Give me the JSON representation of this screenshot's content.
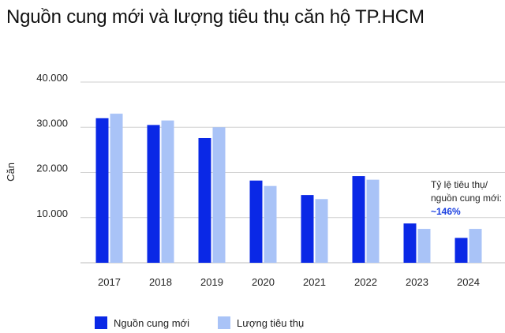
{
  "chart_data": {
    "type": "bar",
    "title": "Nguồn cung mới và lượng tiêu thụ căn hộ TP.HCM",
    "ylabel": "Căn",
    "xlabel": "",
    "ylim": [
      0,
      40000
    ],
    "yticks": [
      10000,
      20000,
      30000,
      40000
    ],
    "ytick_labels": [
      "10.000",
      "20.000",
      "30.000",
      "40.000"
    ],
    "grid": true,
    "legend_position": "bottom-left",
    "categories": [
      "2017",
      "2018",
      "2019",
      "2020",
      "2021",
      "2022",
      "2023",
      "2024"
    ],
    "series": [
      {
        "name": "Nguồn cung mới",
        "color": "#0a28e6",
        "values": [
          32000,
          30500,
          27600,
          18200,
          15000,
          19200,
          8700,
          5500
        ]
      },
      {
        "name": "Lượng tiêu thụ",
        "color": "#a9c3f7",
        "values": [
          33000,
          31500,
          30000,
          17000,
          14100,
          18400,
          7500,
          7500
        ]
      }
    ],
    "annotation": {
      "line1": "Tỷ lệ tiêu thụ/",
      "line2": "nguồn cung mới:",
      "value": "~146%"
    }
  }
}
